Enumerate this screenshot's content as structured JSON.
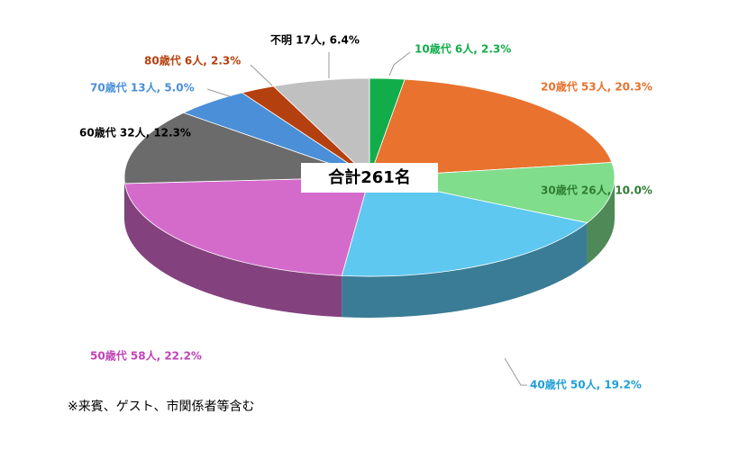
{
  "chart_data": {
    "type": "pie3d",
    "values": [
      2.3,
      20.3,
      10.0,
      19.2,
      22.2,
      12.3,
      5.0,
      2.3,
      6.4
    ],
    "value_labels": [
      "10歳代 6人, 2.3%",
      "20歳代 53人, 20.3%",
      "30歳代 26人, 10.0%",
      "40歳代 50人, 19.2%",
      "50歳代 58人, 22.2%",
      "60歳代 32人, 12.3%",
      "70歳代 13人, 5.0%",
      "80歳代 6人, 2.3%",
      "不明 17人, 6.4%"
    ],
    "colors": [
      "#12ad4b",
      "#e8722e",
      "#80dd8c",
      "#5ec8f0",
      "#d46bcb",
      "#6b6b6b",
      "#4a8fd8",
      "#b5400f",
      "#c0c0c0"
    ],
    "label_colors": [
      "#12ad4b",
      "#e8722e",
      "#2e7d32",
      "#1f9fd6",
      "#c043b5",
      "#000000",
      "#4a8fd8",
      "#b5400f",
      "#000000"
    ],
    "annotation": "合計261名",
    "note": "※来賓、ゲスト、市関係者等含む"
  }
}
